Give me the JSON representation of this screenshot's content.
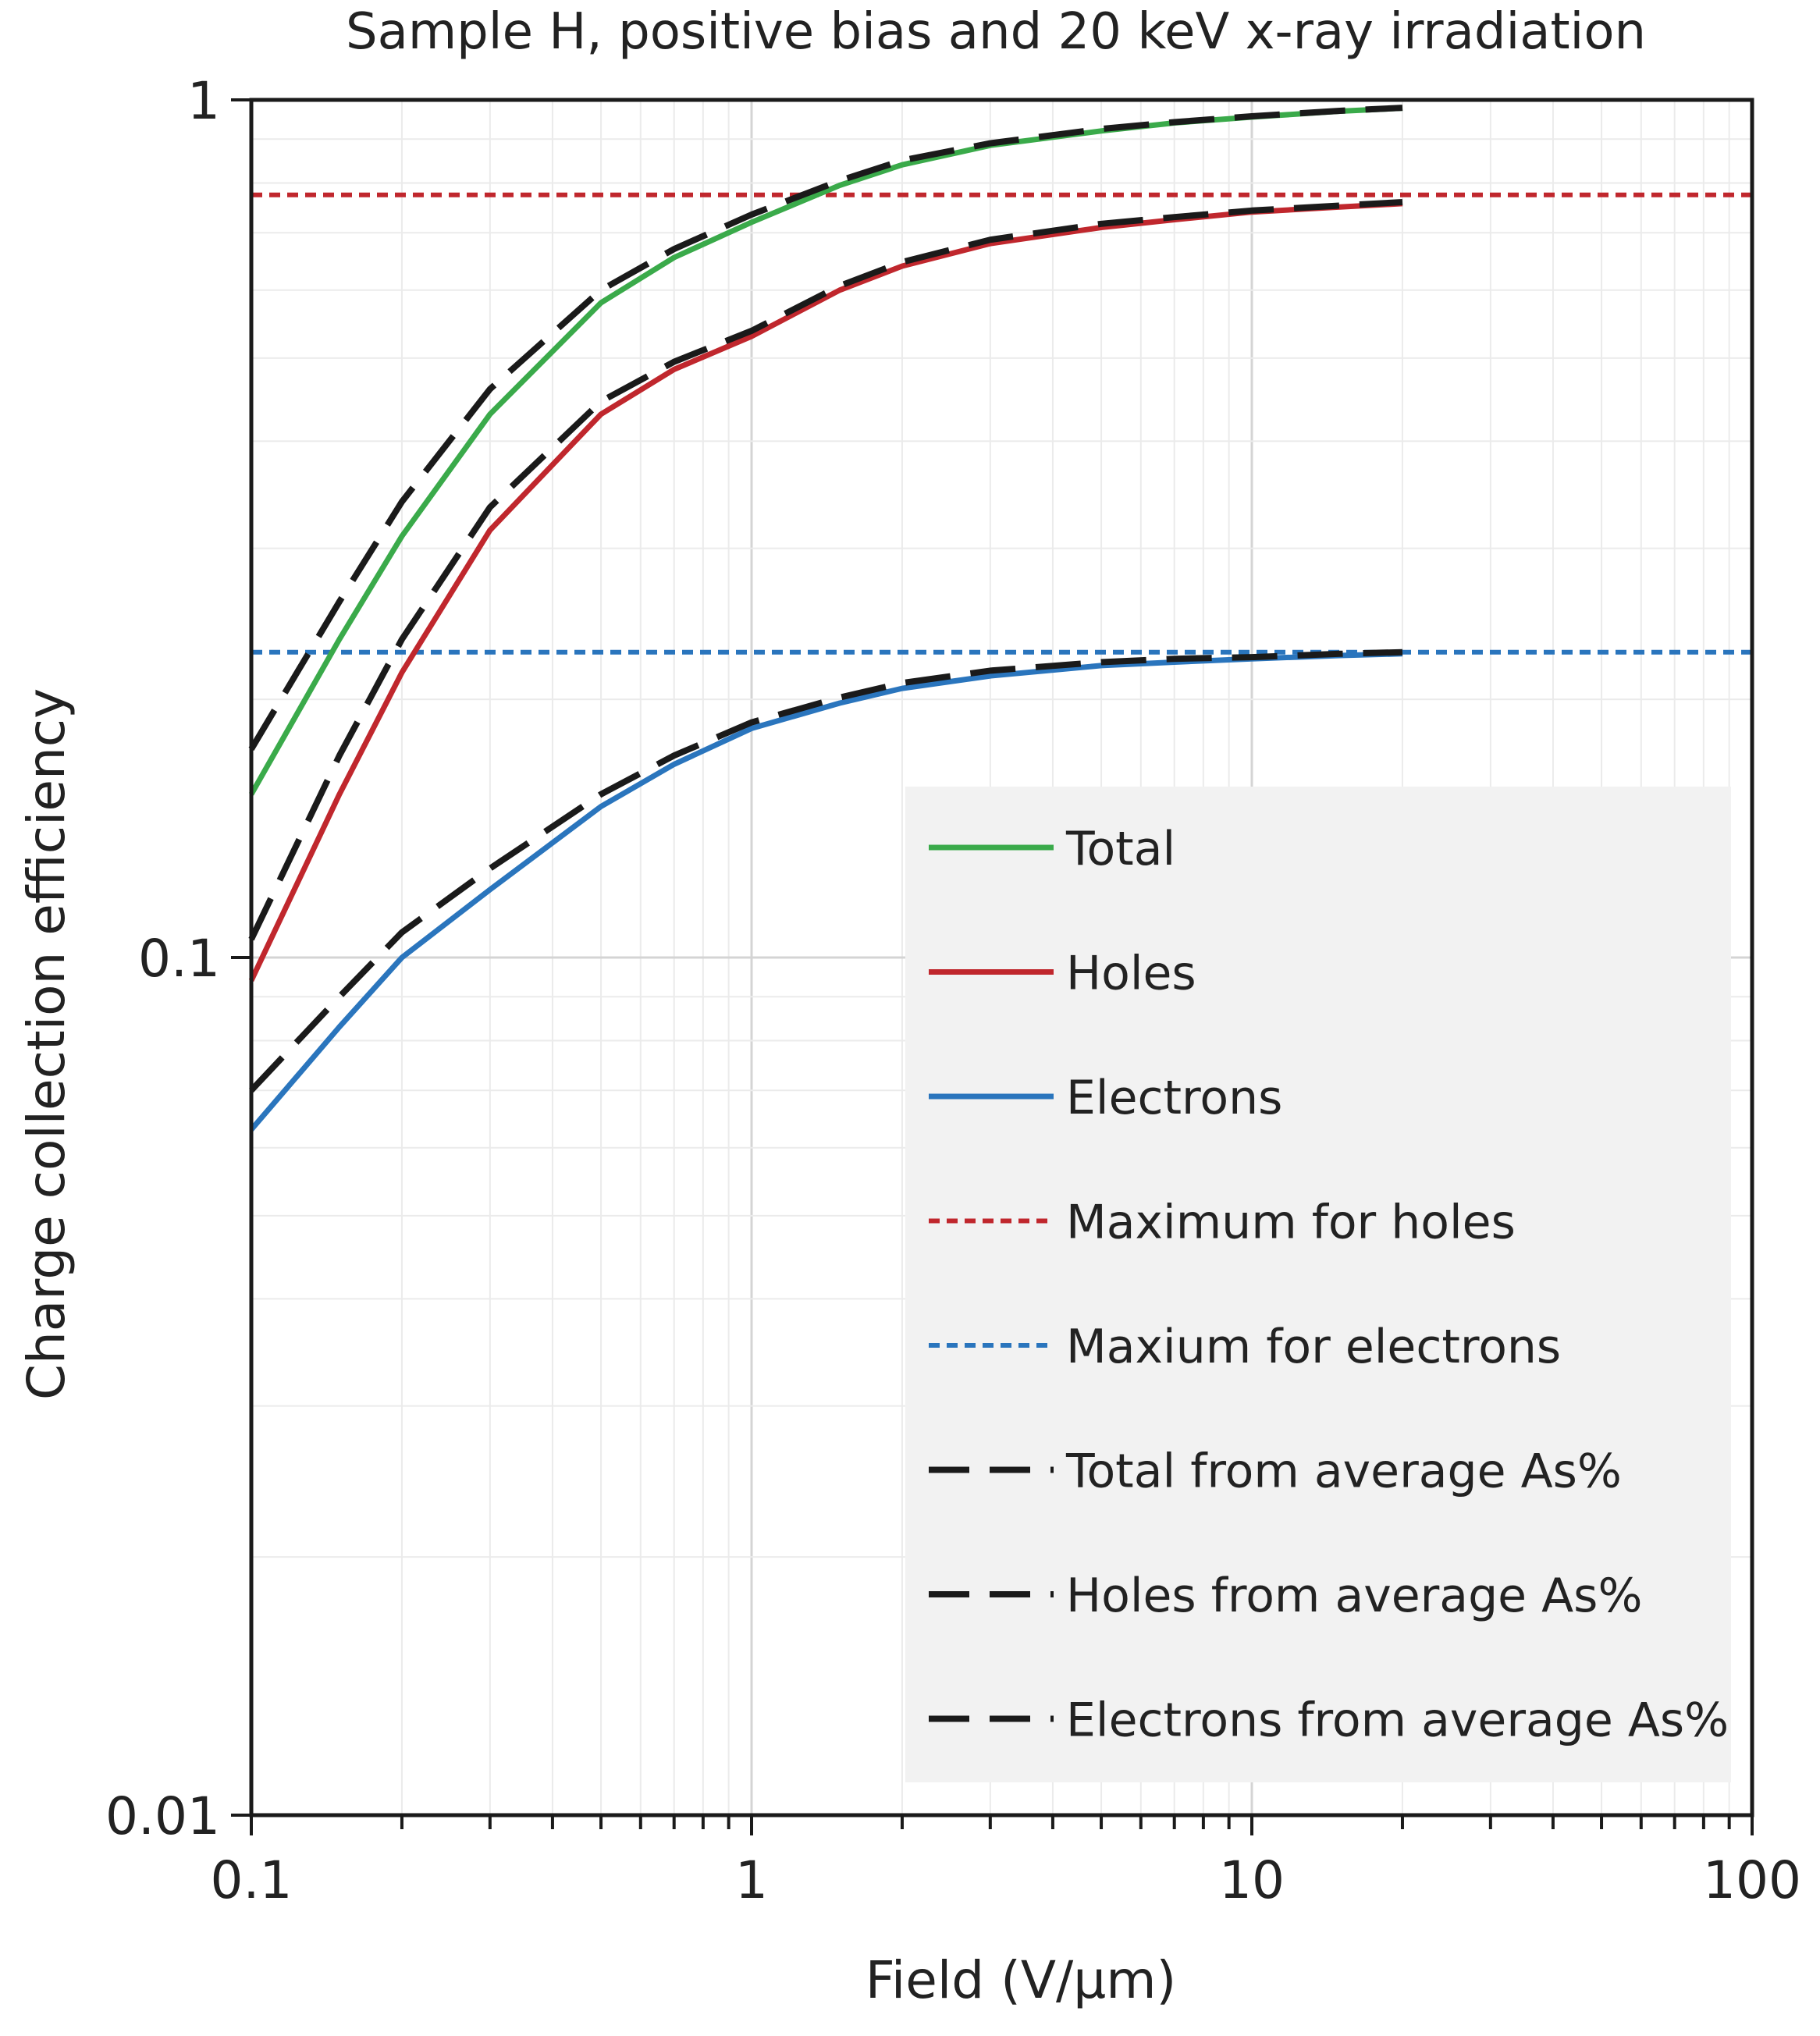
{
  "chart_data": {
    "type": "line",
    "title": "Sample H, positive bias and 20 keV x-ray irradiation",
    "xlabel": "Field (V/μm)",
    "ylabel": "Charge collection efficiency",
    "xscale": "log",
    "yscale": "log",
    "xlim": [
      0.1,
      100
    ],
    "ylim": [
      0.01,
      1
    ],
    "grid": true,
    "legend_position": "lower-right",
    "x_ticks": [
      {
        "value": 0.1,
        "label": "0.1"
      },
      {
        "value": 1,
        "label": "1"
      },
      {
        "value": 10,
        "label": "10"
      },
      {
        "value": 100,
        "label": "100"
      }
    ],
    "y_ticks": [
      {
        "value": 0.01,
        "label": "0.01"
      },
      {
        "value": 0.1,
        "label": "0.1"
      },
      {
        "value": 1,
        "label": "1"
      }
    ],
    "x": [
      0.1,
      0.15,
      0.2,
      0.3,
      0.5,
      0.7,
      1,
      1.5,
      2,
      3,
      5,
      7,
      10,
      15,
      20
    ],
    "series": [
      {
        "name": "Total",
        "color": "#3aaa4a",
        "style": "solid",
        "values": [
          0.155,
          0.235,
          0.31,
          0.43,
          0.58,
          0.655,
          0.72,
          0.795,
          0.84,
          0.885,
          0.92,
          0.94,
          0.955,
          0.97,
          0.978
        ]
      },
      {
        "name": "Holes",
        "color": "#c0272d",
        "style": "solid",
        "values": [
          0.094,
          0.155,
          0.215,
          0.315,
          0.43,
          0.485,
          0.53,
          0.6,
          0.64,
          0.68,
          0.71,
          0.725,
          0.74,
          0.75,
          0.757
        ]
      },
      {
        "name": "Electrons",
        "color": "#2a75bd",
        "style": "solid",
        "values": [
          0.063,
          0.083,
          0.1,
          0.12,
          0.15,
          0.168,
          0.185,
          0.198,
          0.206,
          0.213,
          0.219,
          0.221,
          0.223,
          0.225,
          0.226
        ]
      },
      {
        "name": "Maximum for holes",
        "color": "#c0272d",
        "style": "dotted",
        "x": [
          0.1,
          100
        ],
        "values": [
          0.775,
          0.775
        ]
      },
      {
        "name": "Maxium for electrons",
        "color": "#2a75bd",
        "style": "dotted",
        "x": [
          0.1,
          100
        ],
        "values": [
          0.227,
          0.227
        ]
      },
      {
        "name": "Total from average As%",
        "color": "#1a1a1a",
        "style": "dashed",
        "values": [
          0.175,
          0.26,
          0.34,
          0.46,
          0.6,
          0.67,
          0.735,
          0.805,
          0.85,
          0.89,
          0.925,
          0.942,
          0.957,
          0.971,
          0.979
        ]
      },
      {
        "name": "Holes from average As%",
        "color": "#1a1a1a",
        "style": "dashed",
        "values": [
          0.105,
          0.172,
          0.235,
          0.335,
          0.445,
          0.495,
          0.538,
          0.607,
          0.647,
          0.687,
          0.717,
          0.73,
          0.743,
          0.753,
          0.76
        ]
      },
      {
        "name": "Electrons from average As%",
        "color": "#1a1a1a",
        "style": "dashed",
        "values": [
          0.07,
          0.09,
          0.107,
          0.127,
          0.155,
          0.172,
          0.188,
          0.201,
          0.209,
          0.216,
          0.221,
          0.223,
          0.224,
          0.226,
          0.227
        ]
      }
    ]
  }
}
